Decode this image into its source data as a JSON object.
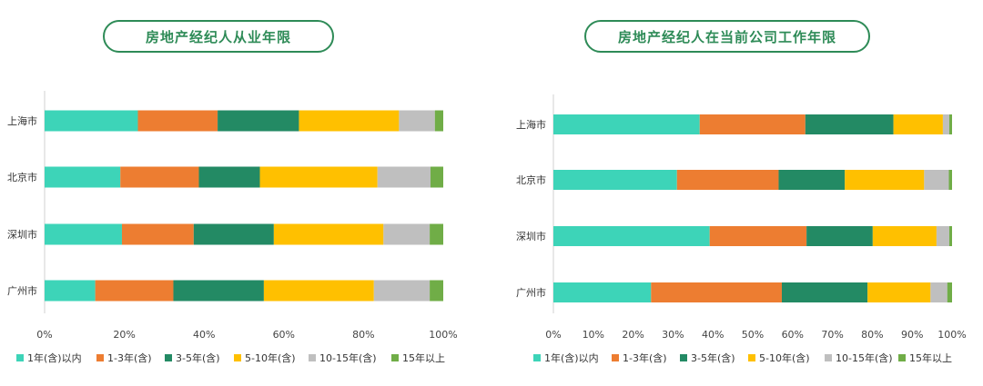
{
  "chart_data": [
    {
      "type": "bar",
      "title": "房地产经纪人从业年限",
      "orientation": "horizontal-stacked-100",
      "categories": [
        "上海市",
        "北京市",
        "深圳市",
        "广州市"
      ],
      "series": [
        {
          "name": "1年(含)以内",
          "values": [
            23.4,
            19.0,
            19.4,
            12.7
          ]
        },
        {
          "name": "1-3年(含)",
          "values": [
            20.0,
            19.7,
            18.0,
            19.6
          ]
        },
        {
          "name": "3-5年(含)",
          "values": [
            20.4,
            15.3,
            20.1,
            22.7
          ]
        },
        {
          "name": "5-10年(含)",
          "values": [
            25.1,
            29.5,
            27.5,
            27.6
          ]
        },
        {
          "name": "10-15年(含)",
          "values": [
            9.0,
            13.3,
            11.6,
            14.0
          ]
        },
        {
          "name": "15年以上",
          "values": [
            2.1,
            3.2,
            3.4,
            3.4
          ]
        }
      ],
      "xlim": [
        0,
        100
      ],
      "xticks": [
        "0%",
        "20%",
        "40%",
        "60%",
        "80%",
        "100%"
      ],
      "legend": "bottom"
    },
    {
      "type": "bar",
      "title": "房地产经纪人在当前公司工作年限",
      "orientation": "horizontal-stacked-100",
      "categories": [
        "上海市",
        "北京市",
        "深圳市",
        "广州市"
      ],
      "series": [
        {
          "name": "1年(含)以内",
          "values": [
            36.7,
            31.0,
            39.2,
            24.5
          ]
        },
        {
          "name": "1-3年(含)",
          "values": [
            26.5,
            25.5,
            24.3,
            32.8
          ]
        },
        {
          "name": "3-5年(含)",
          "values": [
            22.1,
            16.6,
            16.6,
            21.5
          ]
        },
        {
          "name": "5-10年(含)",
          "values": [
            12.4,
            19.9,
            16.0,
            15.8
          ]
        },
        {
          "name": "10-15年(含)",
          "values": [
            1.6,
            6.2,
            3.2,
            4.2
          ]
        },
        {
          "name": "15年以上",
          "values": [
            0.7,
            0.8,
            0.7,
            1.2
          ]
        }
      ],
      "xlim": [
        0,
        100
      ],
      "xticks": [
        "0%",
        "10%",
        "20%",
        "30%",
        "40%",
        "50%",
        "60%",
        "70%",
        "80%",
        "90%",
        "100%"
      ],
      "legend": "bottom"
    }
  ],
  "colors": [
    "#3dd4b8",
    "#ed7d31",
    "#238a64",
    "#ffc000",
    "#bfbfbf",
    "#70ad47"
  ]
}
